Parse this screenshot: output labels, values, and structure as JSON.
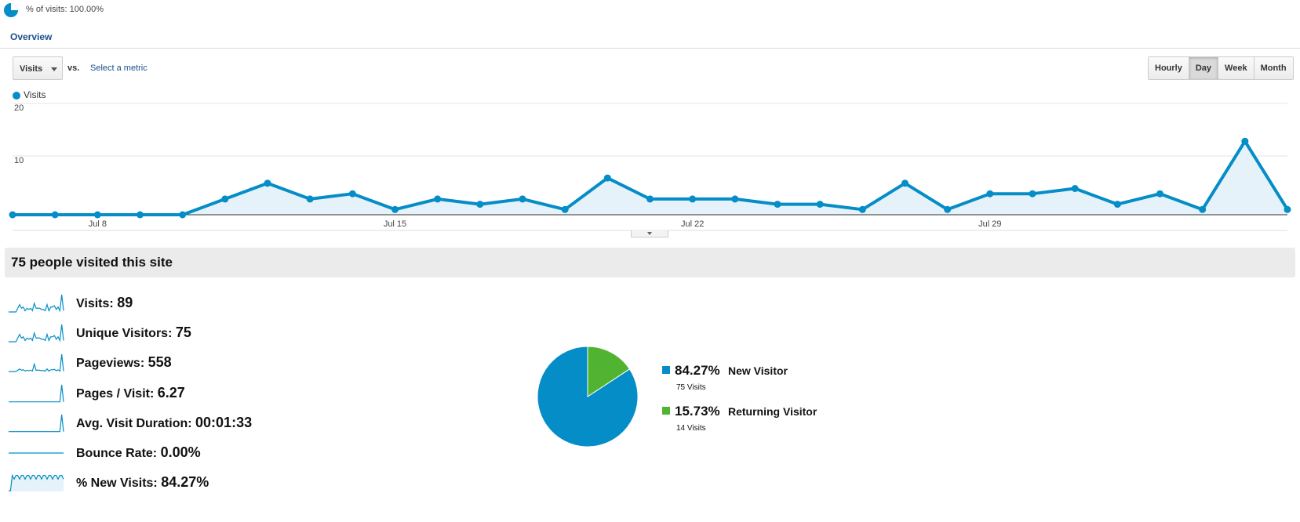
{
  "segment": {
    "label": "% of visits: 100.00%"
  },
  "tabs": {
    "overview": "Overview"
  },
  "controls": {
    "metric": "Visits",
    "vs": "vs.",
    "select_metric": "Select a metric",
    "granularity": [
      "Hourly",
      "Day",
      "Week",
      "Month"
    ],
    "granularity_active": "Day"
  },
  "colors": {
    "accent": "#058dc7",
    "returning": "#50b432",
    "area": "#e6f2f9"
  },
  "chart_data": {
    "type": "area",
    "series": [
      {
        "name": "Visits",
        "values": [
          0,
          0,
          0,
          0,
          0,
          3,
          6,
          3,
          4,
          1,
          3,
          2,
          3,
          1,
          7,
          3,
          3,
          3,
          2,
          2,
          1,
          6,
          1,
          4,
          4,
          5,
          2,
          4,
          1,
          14,
          1
        ]
      }
    ],
    "x_ticks": [
      {
        "index": 2,
        "label": "Jul 8"
      },
      {
        "index": 9,
        "label": "Jul 15"
      },
      {
        "index": 16,
        "label": "Jul 22"
      },
      {
        "index": 23,
        "label": "Jul 29"
      }
    ],
    "y_ticks": [
      10,
      20
    ],
    "ylim": [
      0,
      20
    ],
    "grid": true,
    "legend": "top-left"
  },
  "summary": {
    "title": "75 people visited this site",
    "metrics": [
      {
        "label": "Visits:",
        "value": "89",
        "spark": "visits"
      },
      {
        "label": "Unique Visitors:",
        "value": "75",
        "spark": "visits"
      },
      {
        "label": "Pageviews:",
        "value": "558",
        "spark": "pageviews"
      },
      {
        "label": "Pages / Visit:",
        "value": "6.27",
        "spark": "spike"
      },
      {
        "label": "Avg. Visit Duration:",
        "value": "00:01:33",
        "spark": "spike"
      },
      {
        "label": "Bounce Rate:",
        "value": "0.00%",
        "spark": "flat"
      },
      {
        "label": "% New Visits:",
        "value": "84.27%",
        "spark": "newvisits"
      }
    ]
  },
  "pie": {
    "slices": [
      {
        "name": "New Visitor",
        "percent": "84.27%",
        "visits": "75 Visits",
        "value": 84.27,
        "color": "#058dc7"
      },
      {
        "name": "Returning Visitor",
        "percent": "15.73%",
        "visits": "14 Visits",
        "value": 15.73,
        "color": "#50b432"
      }
    ]
  }
}
